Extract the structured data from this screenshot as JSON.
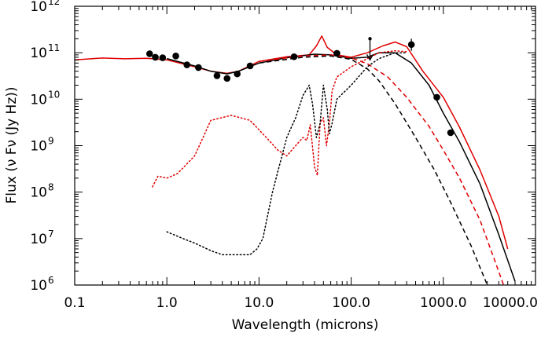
{
  "chart_data": {
    "type": "line",
    "title": "",
    "xlabel": "Wavelength (microns)",
    "ylabel": "Flux (ν Fν (Jy Hz))",
    "x_scale": "log",
    "y_scale": "log",
    "xlim": [
      0.1,
      10000
    ],
    "ylim": [
      1000000.0,
      1000000000000.0
    ],
    "x_ticks": [
      {
        "value": 0.1,
        "label": "0.1"
      },
      {
        "value": 1,
        "label": "1.0"
      },
      {
        "value": 10,
        "label": "10.0"
      },
      {
        "value": 100,
        "label": "100.0"
      },
      {
        "value": 1000,
        "label": "1000.0"
      },
      {
        "value": 10000,
        "label": "10000.0"
      }
    ],
    "y_ticks": [
      {
        "value": 1000000.0,
        "base": "10",
        "exp": "6"
      },
      {
        "value": 10000000.0,
        "base": "10",
        "exp": "7"
      },
      {
        "value": 100000000.0,
        "base": "10",
        "exp": "8"
      },
      {
        "value": 1000000000.0,
        "base": "10",
        "exp": "9"
      },
      {
        "value": 10000000000.0,
        "base": "10",
        "exp": "10"
      },
      {
        "value": 100000000000.0,
        "base": "10",
        "exp": "11"
      },
      {
        "value": 1000000000000.0,
        "base": "10",
        "exp": "12"
      }
    ],
    "series": [
      {
        "name": "red-total-model",
        "color": "#e00000",
        "dash": "solid",
        "points": [
          [
            0.1,
            70000000000.0
          ],
          [
            0.2,
            77000000000.0
          ],
          [
            0.35,
            74000000000.0
          ],
          [
            0.6,
            76000000000.0
          ],
          [
            1,
            70000000000.0
          ],
          [
            2,
            50000000000.0
          ],
          [
            3,
            40000000000.0
          ],
          [
            4.5,
            36000000000.0
          ],
          [
            6,
            40000000000.0
          ],
          [
            10,
            65000000000.0
          ],
          [
            20,
            82000000000.0
          ],
          [
            35,
            90000000000.0
          ],
          [
            42,
            140000000000.0
          ],
          [
            48,
            230000000000.0
          ],
          [
            55,
            130000000000.0
          ],
          [
            70,
            90000000000.0
          ],
          [
            100,
            80000000000.0
          ],
          [
            150,
            100000000000.0
          ],
          [
            220,
            140000000000.0
          ],
          [
            300,
            170000000000.0
          ],
          [
            400,
            135000000000.0
          ],
          [
            600,
            40000000000.0
          ],
          [
            1000,
            11000000000.0
          ],
          [
            1500,
            2500000000.0
          ],
          [
            2500,
            300000000.0
          ],
          [
            4000,
            30000000.0
          ],
          [
            5000,
            6000000.0
          ]
        ]
      },
      {
        "name": "black-total-model",
        "color": "#000000",
        "dash": "solid",
        "points": [
          [
            1,
            75000000000.0
          ],
          [
            2,
            52000000000.0
          ],
          [
            3,
            40000000000.0
          ],
          [
            4.5,
            35000000000.0
          ],
          [
            6,
            40000000000.0
          ],
          [
            10,
            60000000000.0
          ],
          [
            20,
            78000000000.0
          ],
          [
            40,
            93000000000.0
          ],
          [
            60,
            90000000000.0
          ],
          [
            100,
            76000000000.0
          ],
          [
            150,
            80000000000.0
          ],
          [
            200,
            100000000000.0
          ],
          [
            300,
            100000000000.0
          ],
          [
            450,
            60000000000.0
          ],
          [
            700,
            20000000000.0
          ],
          [
            1000,
            5000000000.0
          ],
          [
            1500,
            1200000000.0
          ],
          [
            2500,
            150000000.0
          ],
          [
            4000,
            12000000.0
          ],
          [
            6000,
            1200000.0
          ]
        ]
      },
      {
        "name": "red-dashed-component",
        "color": "#e00000",
        "dash": "dashed",
        "points": [
          [
            10,
            65000000000.0
          ],
          [
            30,
            85000000000.0
          ],
          [
            60,
            90000000000.0
          ],
          [
            100,
            78000000000.0
          ],
          [
            150,
            58000000000.0
          ],
          [
            250,
            30000000000.0
          ],
          [
            400,
            11000000000.0
          ],
          [
            700,
            2600000000.0
          ],
          [
            1000,
            800000000.0
          ],
          [
            1500,
            200000000.0
          ],
          [
            2500,
            25000000.0
          ],
          [
            3500,
            4000000.0
          ],
          [
            4500,
            1000000.0
          ]
        ]
      },
      {
        "name": "black-dashed-component",
        "color": "#000000",
        "dash": "dashed",
        "points": [
          [
            10,
            60000000000.0
          ],
          [
            30,
            80000000000.0
          ],
          [
            60,
            85000000000.0
          ],
          [
            100,
            72000000000.0
          ],
          [
            150,
            45000000000.0
          ],
          [
            200,
            25000000000.0
          ],
          [
            300,
            8000000000.0
          ],
          [
            500,
            1500000000.0
          ],
          [
            800,
            300000000.0
          ],
          [
            1200,
            60000000.0
          ],
          [
            2000,
            7000000.0
          ],
          [
            3000,
            1000000.0
          ]
        ]
      },
      {
        "name": "red-dotted-component",
        "color": "#e00000",
        "dash": "dotted",
        "points": [
          [
            0.7,
            130000000.0
          ],
          [
            0.8,
            220000000.0
          ],
          [
            1,
            200000000.0
          ],
          [
            1.3,
            250000000.0
          ],
          [
            2,
            600000000.0
          ],
          [
            3,
            3500000000.0
          ],
          [
            5,
            4500000000.0
          ],
          [
            8,
            3500000000.0
          ],
          [
            12,
            1500000000.0
          ],
          [
            16,
            800000000.0
          ],
          [
            20,
            600000000.0
          ],
          [
            25,
            1000000000.0
          ],
          [
            30,
            1500000000.0
          ],
          [
            33,
            1300000000.0
          ],
          [
            36,
            2800000000.0
          ],
          [
            40,
            350000000.0
          ],
          [
            43,
            230000000.0
          ],
          [
            46,
            3000000000.0
          ],
          [
            50,
            4000000000.0
          ],
          [
            54,
            1000000000.0
          ],
          [
            58,
            3000000000.0
          ],
          [
            62,
            15000000000.0
          ],
          [
            70,
            30000000000.0
          ],
          [
            100,
            50000000000.0
          ],
          [
            150,
            75000000000.0
          ],
          [
            200,
            100000000000.0
          ],
          [
            300,
            110000000000.0
          ],
          [
            400,
            105000000000.0
          ]
        ]
      },
      {
        "name": "black-dotted-component",
        "color": "#000000",
        "dash": "dotted",
        "points": [
          [
            1,
            14000000.0
          ],
          [
            1.5,
            10000000.0
          ],
          [
            2,
            8000000.0
          ],
          [
            3,
            5500000.0
          ],
          [
            4,
            4500000.0
          ],
          [
            6,
            4500000.0
          ],
          [
            8,
            4500000.0
          ],
          [
            9.5,
            6000000.0
          ],
          [
            11,
            10000000.0
          ],
          [
            14,
            100000000.0
          ],
          [
            20,
            1500000000.0
          ],
          [
            25,
            4000000000.0
          ],
          [
            30,
            12000000000.0
          ],
          [
            35,
            20000000000.0
          ],
          [
            38,
            8000000000.0
          ],
          [
            42,
            1500000000.0
          ],
          [
            46,
            3000000000.0
          ],
          [
            50,
            20000000000.0
          ],
          [
            55,
            6000000000.0
          ],
          [
            58,
            1800000000.0
          ],
          [
            62,
            3000000000.0
          ],
          [
            70,
            10000000000.0
          ],
          [
            100,
            20000000000.0
          ],
          [
            150,
            50000000000.0
          ],
          [
            200,
            75000000000.0
          ],
          [
            300,
            100000000000.0
          ],
          [
            400,
            100000000000.0
          ]
        ]
      }
    ],
    "observed_points": [
      {
        "x": 0.65,
        "y": 95000000000.0
      },
      {
        "x": 0.75,
        "y": 80000000000.0
      },
      {
        "x": 0.9,
        "y": 78000000000.0
      },
      {
        "x": 1.25,
        "y": 85000000000.0
      },
      {
        "x": 1.65,
        "y": 55000000000.0
      },
      {
        "x": 2.2,
        "y": 48000000000.0
      },
      {
        "x": 3.5,
        "y": 32000000000.0
      },
      {
        "x": 4.5,
        "y": 28000000000.0
      },
      {
        "x": 5.8,
        "y": 35000000000.0
      },
      {
        "x": 8.0,
        "y": 52000000000.0
      },
      {
        "x": 24,
        "y": 82000000000.0
      },
      {
        "x": 70,
        "y": 97000000000.0
      },
      {
        "x": 450,
        "y": 150000000000.0,
        "error_bar": [
          110000000000.0,
          200000000000.0
        ]
      },
      {
        "x": 850,
        "y": 11000000000.0
      },
      {
        "x": 1200,
        "y": 1900000000.0
      }
    ],
    "upper_limits": [
      {
        "x": 160,
        "y": 200000000000.0,
        "limit_to": 70000000000.0
      }
    ]
  }
}
